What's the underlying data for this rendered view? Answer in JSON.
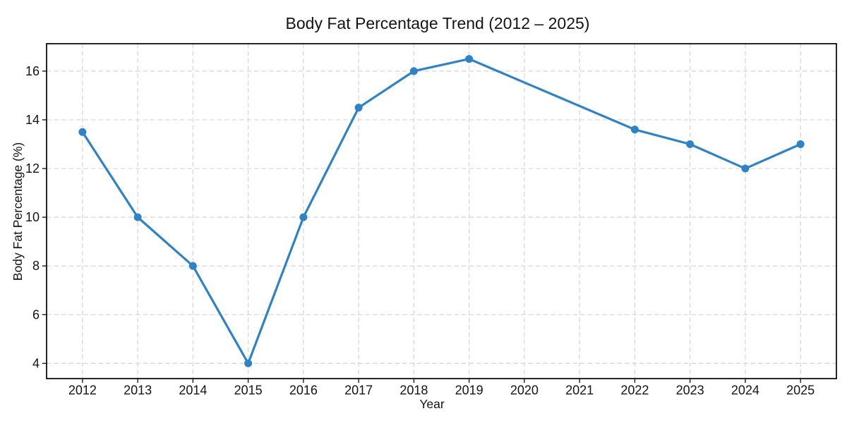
{
  "chart_data": {
    "type": "line",
    "title": "Body Fat Percentage Trend (2012 – 2025)",
    "xlabel": "Year",
    "ylabel": "Body Fat Percentage (%)",
    "series": [
      {
        "name": "Body Fat Percentage",
        "x": [
          2012,
          2013,
          2014,
          2015,
          2016,
          2017,
          2018,
          2019,
          2022,
          2023,
          2024,
          2025
        ],
        "y": [
          13.5,
          10,
          8,
          4,
          10,
          14.5,
          16,
          16.5,
          13.6,
          13,
          12,
          13
        ]
      }
    ],
    "x_ticks": [
      2012,
      2013,
      2014,
      2015,
      2016,
      2017,
      2018,
      2019,
      2020,
      2021,
      2022,
      2023,
      2024,
      2025
    ],
    "y_ticks": [
      4,
      6,
      8,
      10,
      12,
      14,
      16
    ],
    "xlim": [
      2011.35,
      2025.65
    ],
    "ylim": [
      3.375,
      17.125
    ],
    "grid": true,
    "legend": false,
    "line_color": "#2e82c6",
    "marker": "circle",
    "marker_radius": 5.5,
    "grid_color": "#d6d6d6",
    "frame_color": "#000000",
    "text_color": "#141414",
    "background_color": "#ffffff"
  }
}
